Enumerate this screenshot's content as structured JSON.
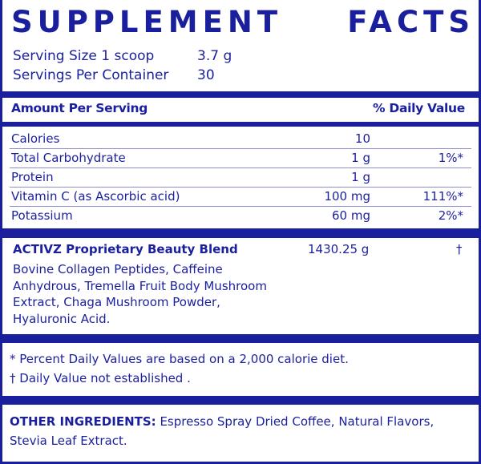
{
  "title_words": [
    "SUPPLEMENT",
    "FACTS"
  ],
  "serving": [
    {
      "label": "Serving Size 1 scoop",
      "value": "3.7 g"
    },
    {
      "label": "Servings Per Container",
      "value": "30"
    }
  ],
  "header": {
    "amount": "Amount Per Serving",
    "dv": "% Daily Value"
  },
  "nutrients": [
    {
      "name": "Calories",
      "amount": "10",
      "dv": ""
    },
    {
      "name": "Total Carbohydrate",
      "amount": "1 g",
      "dv": "1%*"
    },
    {
      "name": "Protein",
      "amount": "1 g",
      "dv": ""
    },
    {
      "name": "Vitamin C (as Ascorbic acid)",
      "amount": "100 mg",
      "dv": "111%*"
    },
    {
      "name": "Potassium",
      "amount": "60 mg",
      "dv": "2%*"
    }
  ],
  "blend": {
    "name": "ACTIVZ Proprietary Beauty Blend",
    "amount": "1430.25 g",
    "dv": "†",
    "ingredients": "Bovine Collagen Peptides, Caffeine Anhydrous, Tremella Fruit Body Mushroom Extract, Chaga Mushroom Powder, Hyaluronic Acid."
  },
  "footnotes": [
    "* Percent Daily Values are based on a 2,000 calorie diet.",
    "† Daily Value not established ."
  ],
  "other_ingredients": {
    "label": "OTHER INGREDIENTS:",
    "text": " Espresso Spray Dried Coffee, Natural Flavors, Stevia Leaf Extract."
  },
  "colors": {
    "ink": "#1a1f9e",
    "background": "#ffffff"
  }
}
